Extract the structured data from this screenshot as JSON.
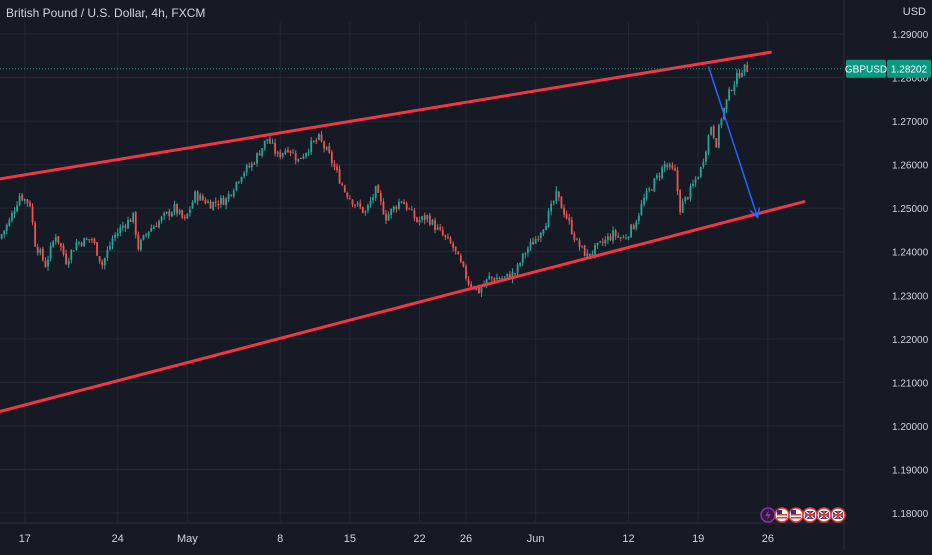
{
  "header": {
    "title": "British Pound / U.S. Dollar, 4h, FXCM",
    "currency": "USD"
  },
  "price_tag": {
    "symbol": "GBPUSD",
    "value": "1.28202",
    "price": 1.28202
  },
  "colors": {
    "background": "#161a25",
    "grid": "#232733",
    "text": "#d1d4dc",
    "up": "#26a69a",
    "down": "#ef5350",
    "channel": "#f23645",
    "arrow": "#2962ff",
    "tag": "#089981"
  },
  "event_icons": [
    "lightning-icon",
    "us-flag-icon",
    "us-flag-icon",
    "uk-flag-icon",
    "uk-flag-icon",
    "uk-flag-icon"
  ],
  "chart_data": {
    "type": "candlestick",
    "title": "British Pound / U.S. Dollar, 4h, FXCM",
    "y_axis": {
      "label": "USD",
      "range": [
        1.177,
        1.292
      ],
      "ticks": [
        "1.29000",
        "1.28000",
        "1.27000",
        "1.26000",
        "1.25000",
        "1.24000",
        "1.23000",
        "1.22000",
        "1.21000",
        "1.20000",
        "1.19000",
        "1.18000"
      ]
    },
    "x_axis": {
      "ticks": [
        "17",
        "24",
        "May",
        "8",
        "15",
        "22",
        "26",
        "Jun",
        "12",
        "19",
        "26"
      ],
      "tick_index": [
        9,
        45,
        72,
        108,
        135,
        162,
        180,
        207,
        243,
        270,
        297
      ]
    },
    "grid": true,
    "candle_count": 290,
    "trend_lines": [
      {
        "name": "channel-top",
        "from": {
          "index": -4,
          "price": 1.2564
        },
        "to": {
          "index": 298,
          "price": 1.2858
        }
      },
      {
        "name": "channel-bottom",
        "from": {
          "index": -4,
          "price": 1.2028
        },
        "to": {
          "index": 311,
          "price": 1.2515
        }
      }
    ],
    "projection_arrow": {
      "from": {
        "index": 274,
        "price": 1.2825
      },
      "to": {
        "index": 293,
        "price": 1.2479
      }
    },
    "close_path": [
      [
        0,
        1.243
      ],
      [
        4,
        1.247
      ],
      [
        8,
        1.253
      ],
      [
        12,
        1.251
      ],
      [
        14,
        1.242
      ],
      [
        18,
        1.237
      ],
      [
        22,
        1.244
      ],
      [
        26,
        1.238
      ],
      [
        30,
        1.242
      ],
      [
        36,
        1.243
      ],
      [
        40,
        1.237
      ],
      [
        44,
        1.243
      ],
      [
        48,
        1.246
      ],
      [
        52,
        1.248
      ],
      [
        54,
        1.241
      ],
      [
        58,
        1.245
      ],
      [
        62,
        1.247
      ],
      [
        68,
        1.25
      ],
      [
        72,
        1.247
      ],
      [
        76,
        1.253
      ],
      [
        82,
        1.251
      ],
      [
        88,
        1.252
      ],
      [
        94,
        1.258
      ],
      [
        98,
        1.26
      ],
      [
        104,
        1.266
      ],
      [
        108,
        1.262
      ],
      [
        112,
        1.264
      ],
      [
        116,
        1.261
      ],
      [
        120,
        1.264
      ],
      [
        124,
        1.266
      ],
      [
        128,
        1.262
      ],
      [
        134,
        1.254
      ],
      [
        138,
        1.251
      ],
      [
        142,
        1.249
      ],
      [
        146,
        1.254
      ],
      [
        150,
        1.248
      ],
      [
        156,
        1.252
      ],
      [
        162,
        1.247
      ],
      [
        166,
        1.248
      ],
      [
        170,
        1.245
      ],
      [
        176,
        1.241
      ],
      [
        182,
        1.233
      ],
      [
        186,
        1.231
      ],
      [
        190,
        1.234
      ],
      [
        196,
        1.234
      ],
      [
        200,
        1.235
      ],
      [
        204,
        1.24
      ],
      [
        208,
        1.243
      ],
      [
        212,
        1.247
      ],
      [
        216,
        1.253
      ],
      [
        220,
        1.248
      ],
      [
        224,
        1.242
      ],
      [
        228,
        1.239
      ],
      [
        234,
        1.242
      ],
      [
        238,
        1.244
      ],
      [
        242,
        1.243
      ],
      [
        246,
        1.246
      ],
      [
        250,
        1.252
      ],
      [
        254,
        1.256
      ],
      [
        258,
        1.26
      ],
      [
        262,
        1.258
      ],
      [
        264,
        1.25
      ],
      [
        268,
        1.254
      ],
      [
        272,
        1.259
      ],
      [
        276,
        1.269
      ],
      [
        278,
        1.265
      ],
      [
        280,
        1.271
      ],
      [
        284,
        1.278
      ],
      [
        288,
        1.282
      ],
      [
        290,
        1.282
      ]
    ]
  }
}
